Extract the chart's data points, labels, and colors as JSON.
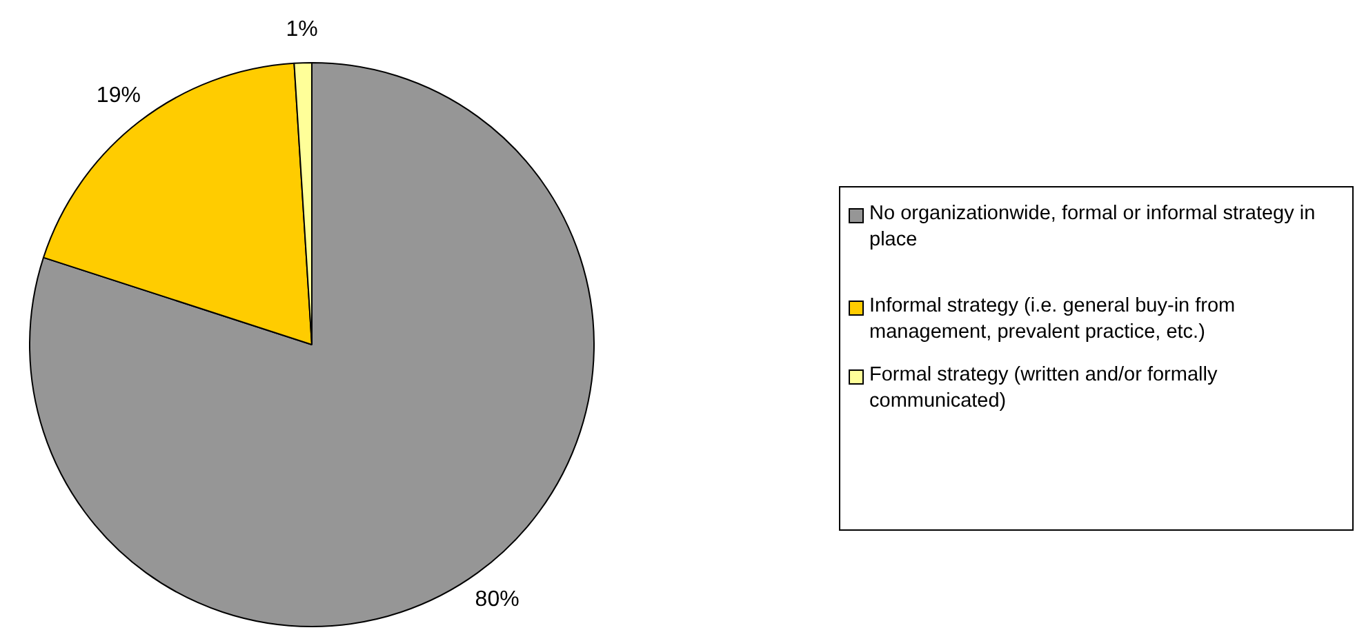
{
  "chart_data": {
    "type": "pie",
    "categories": [
      "No organizationwide, formal or informal strategy in place",
      "Informal strategy (i.e. general buy-in from management, prevalent practice, etc.)",
      "Formal strategy (written and/or formally communicated)"
    ],
    "values": [
      80,
      19,
      1
    ],
    "colors": [
      "#969696",
      "#ffcc00",
      "#ffff99"
    ],
    "value_labels": [
      "80%",
      "19%",
      "1%"
    ],
    "legend": "right"
  }
}
